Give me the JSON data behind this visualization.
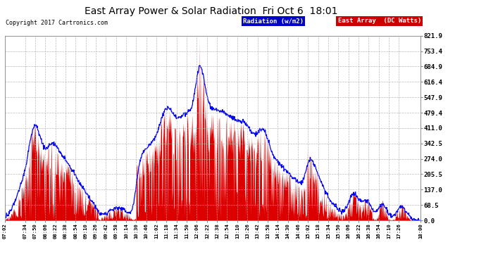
{
  "title": "East Array Power & Solar Radiation  Fri Oct 6  18:01",
  "copyright": "Copyright 2017 Cartronics.com",
  "legend_blue_label": "Radiation (w/m2)",
  "legend_red_label": "East Array  (DC Watts)",
  "yticks": [
    0.0,
    68.5,
    137.0,
    205.5,
    274.0,
    342.5,
    411.0,
    479.4,
    547.9,
    616.4,
    684.9,
    753.4,
    821.9
  ],
  "ymax": 821.9,
  "ymin": 0.0,
  "plot_bg_color": "#ffffff",
  "fig_bg_color": "#ffffff",
  "grid_color": "#aaaaaa",
  "fill_color": "#dd0000",
  "line_color": "#0000ff",
  "xtick_labels": [
    "07:02",
    "07:34",
    "07:50",
    "08:06",
    "08:22",
    "08:38",
    "08:54",
    "09:10",
    "09:26",
    "09:42",
    "09:58",
    "10:14",
    "10:30",
    "10:46",
    "11:02",
    "11:18",
    "11:34",
    "11:50",
    "12:06",
    "12:22",
    "12:38",
    "12:54",
    "13:10",
    "13:26",
    "13:42",
    "13:58",
    "14:14",
    "14:30",
    "14:46",
    "15:02",
    "15:18",
    "15:34",
    "15:50",
    "16:06",
    "16:22",
    "16:38",
    "16:54",
    "17:10",
    "17:26",
    "18:00"
  ]
}
